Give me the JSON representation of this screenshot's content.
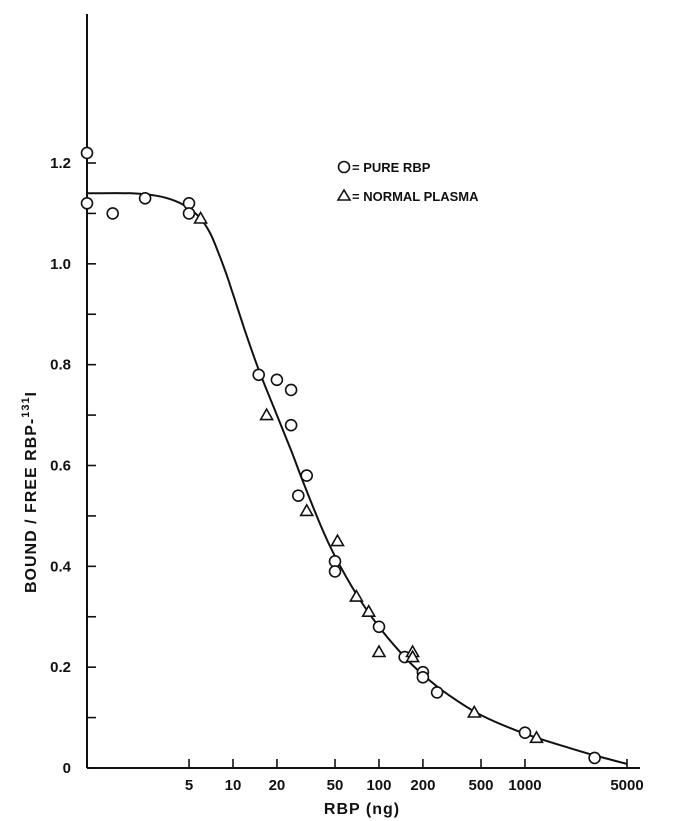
{
  "chart_data": {
    "type": "scatter",
    "xlabel": "RBP (ng)",
    "ylabel": "BOUND / FREE   RBP-",
    "ylabel_superscript": "131",
    "ylabel_suffix": "I",
    "x_scale": "log",
    "xlim": [
      1,
      5000
    ],
    "ylim": [
      0,
      1.25
    ],
    "x_ticks": [
      {
        "value": 5,
        "label": "5"
      },
      {
        "value": 10,
        "label": "10"
      },
      {
        "value": 20,
        "label": "20"
      },
      {
        "value": 50,
        "label": "50"
      },
      {
        "value": 100,
        "label": "100"
      },
      {
        "value": 200,
        "label": "200"
      },
      {
        "value": 500,
        "label": "500"
      },
      {
        "value": 1000,
        "label": "1000"
      },
      {
        "value": 5000,
        "label": "5000"
      }
    ],
    "y_ticks": [
      {
        "value": 0,
        "label": "0"
      },
      {
        "value": 0.2,
        "label": "0.2"
      },
      {
        "value": 0.4,
        "label": "0.4"
      },
      {
        "value": 0.6,
        "label": "0.6"
      },
      {
        "value": 0.8,
        "label": "0.8"
      },
      {
        "value": 1.0,
        "label": "1.0"
      },
      {
        "value": 1.2,
        "label": "1.2"
      }
    ],
    "y_minor_ticks": [
      0.1,
      0.3,
      0.5,
      0.7,
      0.9,
      1.1
    ],
    "grid": false,
    "legend_position": "top-right",
    "series": [
      {
        "name": "= PURE RBP",
        "marker": "circle",
        "points": [
          [
            1.0,
            1.22
          ],
          [
            1.0,
            1.12
          ],
          [
            1.5,
            1.1
          ],
          [
            2.5,
            1.13
          ],
          [
            5.0,
            1.12
          ],
          [
            5.0,
            1.1
          ],
          [
            15,
            0.78
          ],
          [
            20,
            0.77
          ],
          [
            25,
            0.75
          ],
          [
            25,
            0.68
          ],
          [
            32,
            0.58
          ],
          [
            28,
            0.54
          ],
          [
            50,
            0.41
          ],
          [
            50,
            0.39
          ],
          [
            100,
            0.28
          ],
          [
            150,
            0.22
          ],
          [
            200,
            0.19
          ],
          [
            200,
            0.18
          ],
          [
            250,
            0.15
          ],
          [
            1000,
            0.07
          ],
          [
            3000,
            0.02
          ]
        ]
      },
      {
        "name": "= NORMAL PLASMA",
        "marker": "triangle",
        "points": [
          [
            6,
            1.09
          ],
          [
            17,
            0.7
          ],
          [
            32,
            0.51
          ],
          [
            52,
            0.45
          ],
          [
            70,
            0.34
          ],
          [
            85,
            0.31
          ],
          [
            100,
            0.23
          ],
          [
            170,
            0.23
          ],
          [
            170,
            0.22
          ],
          [
            450,
            0.11
          ],
          [
            1200,
            0.06
          ]
        ]
      }
    ],
    "fit_curve": {
      "points": [
        [
          1.0,
          1.14
        ],
        [
          2,
          1.14
        ],
        [
          3,
          1.135
        ],
        [
          4,
          1.125
        ],
        [
          5,
          1.11
        ],
        [
          6,
          1.09
        ],
        [
          7,
          1.06
        ],
        [
          8,
          1.02
        ],
        [
          9,
          0.98
        ],
        [
          10,
          0.94
        ],
        [
          12,
          0.87
        ],
        [
          15,
          0.79
        ],
        [
          20,
          0.7
        ],
        [
          25,
          0.63
        ],
        [
          30,
          0.57
        ],
        [
          40,
          0.48
        ],
        [
          50,
          0.42
        ],
        [
          70,
          0.345
        ],
        [
          100,
          0.28
        ],
        [
          150,
          0.22
        ],
        [
          200,
          0.185
        ],
        [
          300,
          0.145
        ],
        [
          500,
          0.105
        ],
        [
          1000,
          0.068
        ],
        [
          2000,
          0.04
        ],
        [
          3000,
          0.025
        ],
        [
          5000,
          0.008
        ]
      ]
    }
  }
}
